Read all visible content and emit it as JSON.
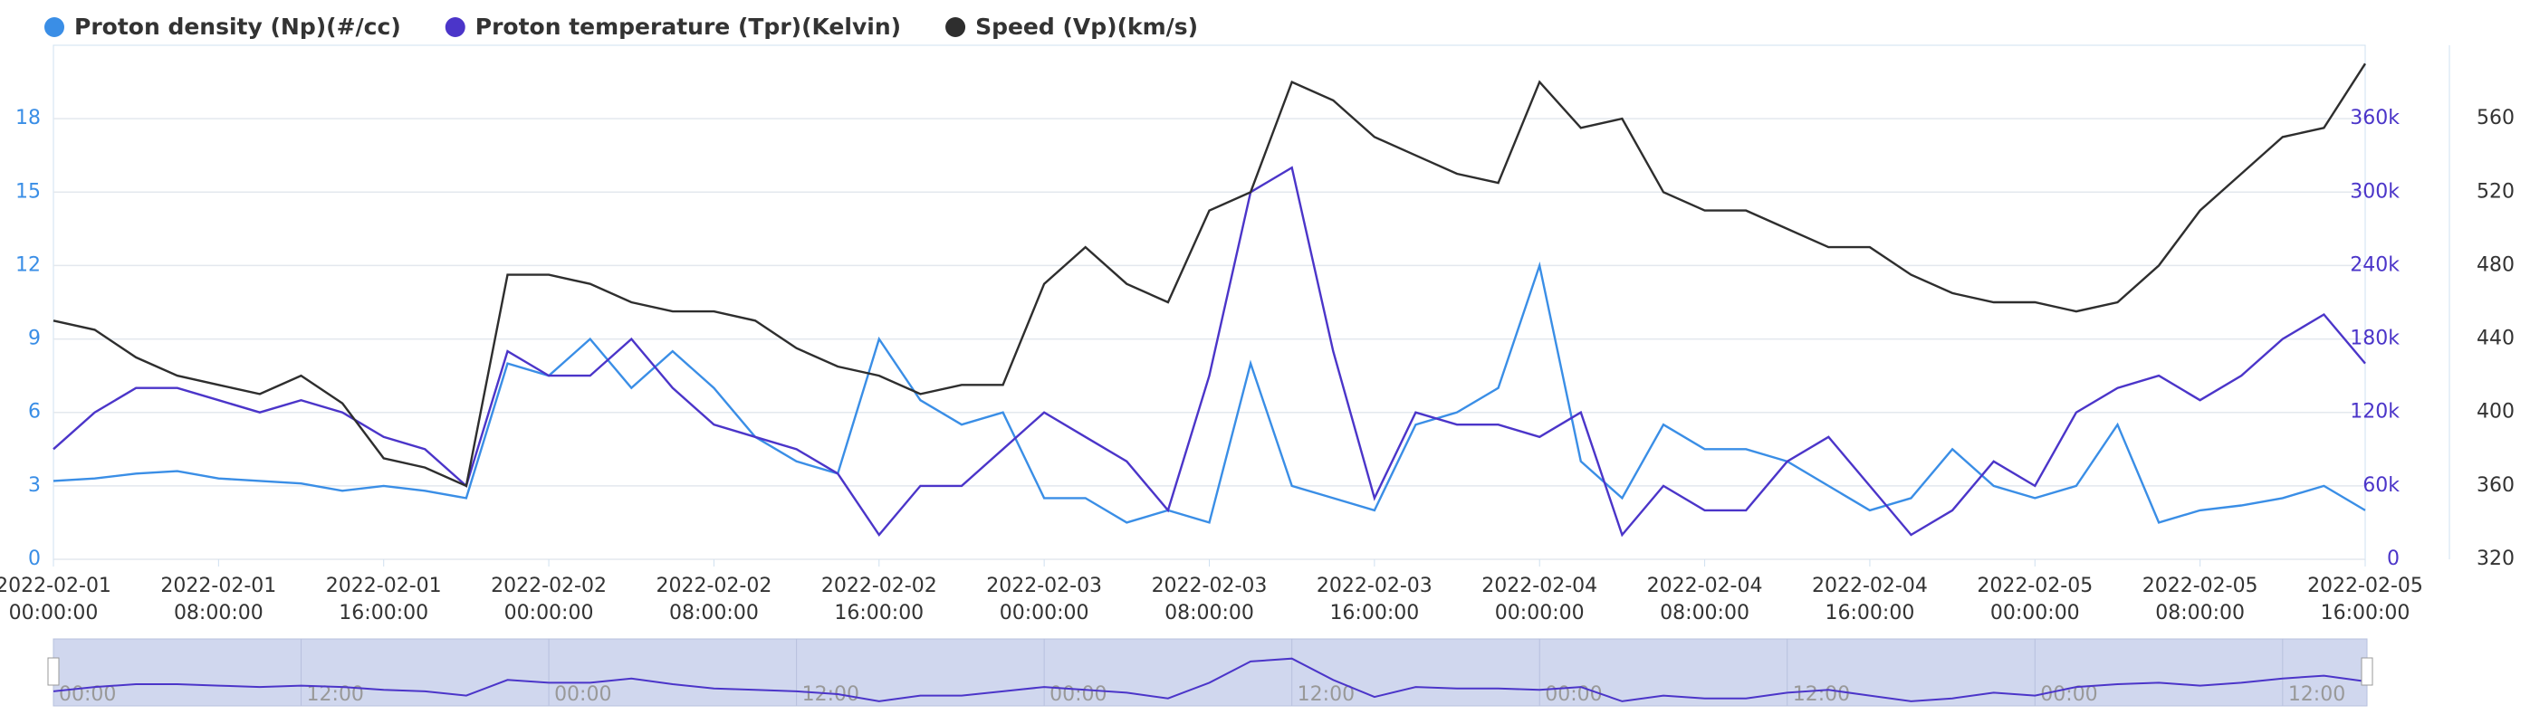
{
  "chart_data": {
    "type": "line",
    "x": [
      "2022-02-01 00:00:00",
      "2022-02-01 02:00:00",
      "2022-02-01 04:00:00",
      "2022-02-01 06:00:00",
      "2022-02-01 08:00:00",
      "2022-02-01 10:00:00",
      "2022-02-01 12:00:00",
      "2022-02-01 14:00:00",
      "2022-02-01 16:00:00",
      "2022-02-01 18:00:00",
      "2022-02-01 20:00:00",
      "2022-02-01 22:00:00",
      "2022-02-02 00:00:00",
      "2022-02-02 02:00:00",
      "2022-02-02 04:00:00",
      "2022-02-02 06:00:00",
      "2022-02-02 08:00:00",
      "2022-02-02 10:00:00",
      "2022-02-02 12:00:00",
      "2022-02-02 14:00:00",
      "2022-02-02 16:00:00",
      "2022-02-02 18:00:00",
      "2022-02-02 20:00:00",
      "2022-02-02 22:00:00",
      "2022-02-03 00:00:00",
      "2022-02-03 02:00:00",
      "2022-02-03 04:00:00",
      "2022-02-03 06:00:00",
      "2022-02-03 08:00:00",
      "2022-02-03 10:00:00",
      "2022-02-03 12:00:00",
      "2022-02-03 14:00:00",
      "2022-02-03 16:00:00",
      "2022-02-03 18:00:00",
      "2022-02-03 20:00:00",
      "2022-02-03 22:00:00",
      "2022-02-04 00:00:00",
      "2022-02-04 02:00:00",
      "2022-02-04 04:00:00",
      "2022-02-04 06:00:00",
      "2022-02-04 08:00:00",
      "2022-02-04 10:00:00",
      "2022-02-04 12:00:00",
      "2022-02-04 14:00:00",
      "2022-02-04 16:00:00",
      "2022-02-04 18:00:00",
      "2022-02-04 20:00:00",
      "2022-02-04 22:00:00",
      "2022-02-05 00:00:00",
      "2022-02-05 02:00:00",
      "2022-02-05 04:00:00",
      "2022-02-05 06:00:00",
      "2022-02-05 08:00:00",
      "2022-02-05 10:00:00",
      "2022-02-05 12:00:00",
      "2022-02-05 14:00:00",
      "2022-02-05 16:00:00"
    ],
    "xlim": [
      "2022-02-01 00:00:00",
      "2022-02-05 16:00:00"
    ],
    "xticks": [
      "2022-02-01 00:00:00",
      "2022-02-01 08:00:00",
      "2022-02-01 16:00:00",
      "2022-02-02 00:00:00",
      "2022-02-02 08:00:00",
      "2022-02-02 16:00:00",
      "2022-02-03 00:00:00",
      "2022-02-03 08:00:00",
      "2022-02-03 16:00:00",
      "2022-02-04 00:00:00",
      "2022-02-04 08:00:00",
      "2022-02-04 16:00:00",
      "2022-02-05 00:00:00",
      "2022-02-05 08:00:00",
      "2022-02-05 16:00:00"
    ],
    "ylim": [
      0,
      21
    ],
    "yticks": [
      0,
      3,
      6,
      9,
      12,
      15,
      18
    ],
    "y2lim": [
      0,
      420000
    ],
    "y2ticks": [
      {
        "value": 0,
        "label": "0"
      },
      {
        "value": 60000,
        "label": "60k"
      },
      {
        "value": 120000,
        "label": "120k"
      },
      {
        "value": 180000,
        "label": "180k"
      },
      {
        "value": 240000,
        "label": "240k"
      },
      {
        "value": 300000,
        "label": "300k"
      },
      {
        "value": 360000,
        "label": "360k"
      }
    ],
    "y3lim": [
      320,
      600
    ],
    "y3ticks": [
      320,
      360,
      400,
      440,
      480,
      520,
      560
    ],
    "grid": true,
    "series": [
      {
        "name": "Proton density (Np)(#/cc)",
        "color": "#3a8ee6",
        "axis": "y",
        "values": [
          3.2,
          3.3,
          3.5,
          3.6,
          3.3,
          3.2,
          3.1,
          2.8,
          3.0,
          2.8,
          2.5,
          8,
          7.5,
          9,
          7,
          8.5,
          7,
          5,
          4,
          3.5,
          9,
          6.5,
          5.5,
          6,
          2.5,
          2.5,
          1.5,
          2,
          1.5,
          8,
          3,
          2.5,
          2,
          5.5,
          6,
          7,
          12,
          4,
          2.5,
          5.5,
          4.5,
          4.5,
          4,
          3,
          2,
          2.5,
          4.5,
          3,
          2.5,
          3,
          5.5,
          1.5,
          2,
          2.2,
          2.5,
          3,
          2
        ]
      },
      {
        "name": "Proton temperature (Tpr)(Kelvin)",
        "color": "#4b35c9",
        "axis": "y2",
        "values": [
          90000,
          120000,
          140000,
          140000,
          130000,
          120000,
          130000,
          120000,
          100000,
          90000,
          60000,
          170000,
          150000,
          150000,
          180000,
          140000,
          110000,
          100000,
          90000,
          70000,
          20000,
          60000,
          60000,
          90000,
          120000,
          100000,
          80000,
          40000,
          150000,
          300000,
          320000,
          170000,
          50000,
          120000,
          110000,
          110000,
          100000,
          120000,
          20000,
          60000,
          40000,
          40000,
          80000,
          100000,
          60000,
          20000,
          40000,
          80000,
          60000,
          120000,
          140000,
          150000,
          130000,
          150000,
          180000,
          200000,
          160000
        ]
      },
      {
        "name": "Speed (Vp)(km/s)",
        "color": "#2e2e2e",
        "axis": "y3",
        "values": [
          450,
          445,
          430,
          420,
          415,
          410,
          420,
          405,
          375,
          370,
          360,
          475,
          475,
          470,
          460,
          455,
          455,
          450,
          435,
          425,
          420,
          410,
          415,
          415,
          470,
          490,
          470,
          460,
          510,
          520,
          580,
          570,
          550,
          540,
          530,
          525,
          580,
          555,
          560,
          520,
          510,
          510,
          500,
          490,
          490,
          475,
          465,
          460,
          460,
          455,
          460,
          480,
          510,
          530,
          550,
          555,
          590
        ]
      }
    ],
    "navigator": {
      "series": 1,
      "ticks": [
        {
          "value": "2022-02-01 00:00:00",
          "label": "00:00"
        },
        {
          "value": "2022-02-01 12:00:00",
          "label": "12:00"
        },
        {
          "value": "2022-02-02 00:00:00",
          "label": "00:00"
        },
        {
          "value": "2022-02-02 12:00:00",
          "label": "12:00"
        },
        {
          "value": "2022-02-03 00:00:00",
          "label": "00:00"
        },
        {
          "value": "2022-02-03 12:00:00",
          "label": "12:00"
        },
        {
          "value": "2022-02-04 00:00:00",
          "label": "00:00"
        },
        {
          "value": "2022-02-04 12:00:00",
          "label": "12:00"
        },
        {
          "value": "2022-02-05 00:00:00",
          "label": "00:00"
        },
        {
          "value": "2022-02-05 12:00:00",
          "label": "12:00"
        }
      ]
    }
  }
}
